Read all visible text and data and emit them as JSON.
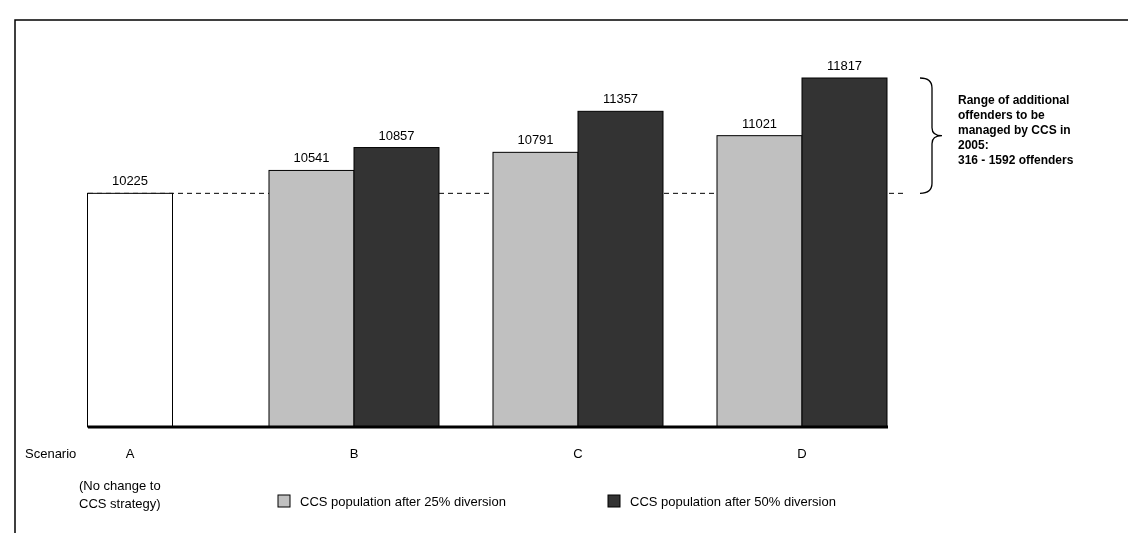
{
  "chart_data": {
    "type": "bar",
    "xlabel": "Scenario",
    "categories": [
      "A",
      "B",
      "C",
      "D"
    ],
    "series": [
      {
        "color": "#ffffff",
        "values": [
          10225,
          null,
          null,
          null
        ]
      },
      {
        "name": "CCS population after 25% diversion",
        "color": "#c0c0c0",
        "values": [
          null,
          10541,
          10791,
          11021
        ]
      },
      {
        "name": "CCS population after 50% diversion",
        "color": "#333333",
        "values": [
          null,
          10857,
          11357,
          11817
        ]
      }
    ],
    "ylim": [
      7000,
      11817
    ],
    "tick_labels": "x",
    "data_labels": true,
    "legend": "bottom",
    "ref_lines": [
      {
        "axis": "y",
        "value": 10225,
        "line_style": "dashed",
        "color": "#000000"
      }
    ],
    "annotations": [
      "(No change to CCS strategy)",
      "Range of additional offenders to be managed by CCS in 2005: 316 - 1592 offenders"
    ]
  }
}
